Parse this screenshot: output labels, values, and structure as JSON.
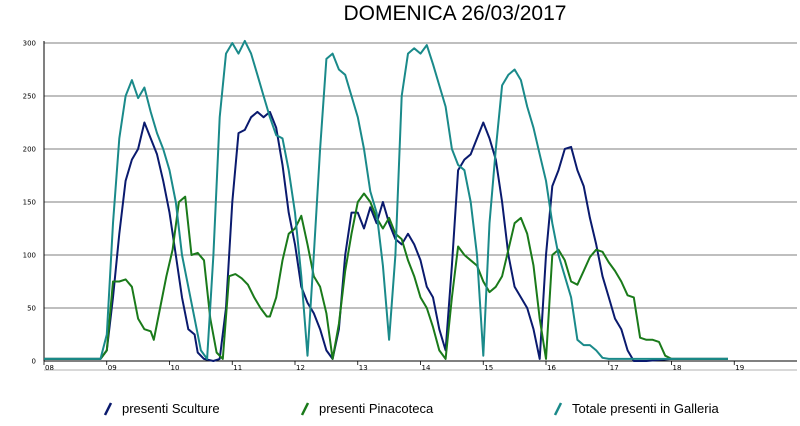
{
  "chart_data": {
    "type": "line",
    "title": "DOMENICA 26/03/2017",
    "xlabel": "",
    "ylabel": "",
    "xlim": [
      8.0,
      20.0
    ],
    "ylim": [
      0,
      300
    ],
    "grid": true,
    "legend_position": "bottom",
    "y_ticks": [
      0,
      50,
      100,
      150,
      200,
      250,
      300
    ],
    "x_ticks": [
      {
        "value": 8,
        "label": "08"
      },
      {
        "value": 9,
        "label": "09"
      },
      {
        "value": 10,
        "label": "10"
      },
      {
        "value": 11,
        "label": "11"
      },
      {
        "value": 12,
        "label": "12"
      },
      {
        "value": 13,
        "label": "13"
      },
      {
        "value": 14,
        "label": "14"
      },
      {
        "value": 15,
        "label": "15"
      },
      {
        "value": 16,
        "label": "16"
      },
      {
        "value": 17,
        "label": "17"
      },
      {
        "value": 18,
        "label": "18"
      },
      {
        "value": 19,
        "label": "19"
      }
    ],
    "series": [
      {
        "name": "presenti Sculture",
        "color": "#0a1a6e",
        "points": [
          [
            8.0,
            2
          ],
          [
            8.9,
            2
          ],
          [
            9.0,
            10
          ],
          [
            9.1,
            60
          ],
          [
            9.2,
            120
          ],
          [
            9.3,
            170
          ],
          [
            9.4,
            190
          ],
          [
            9.5,
            200
          ],
          [
            9.6,
            225
          ],
          [
            9.7,
            210
          ],
          [
            9.8,
            195
          ],
          [
            9.9,
            170
          ],
          [
            10.0,
            140
          ],
          [
            10.1,
            100
          ],
          [
            10.2,
            60
          ],
          [
            10.3,
            30
          ],
          [
            10.4,
            25
          ],
          [
            10.45,
            8
          ],
          [
            10.55,
            2
          ],
          [
            10.7,
            0
          ],
          [
            10.8,
            2
          ],
          [
            10.9,
            50
          ],
          [
            11.0,
            150
          ],
          [
            11.1,
            215
          ],
          [
            11.2,
            218
          ],
          [
            11.3,
            230
          ],
          [
            11.4,
            235
          ],
          [
            11.5,
            230
          ],
          [
            11.6,
            235
          ],
          [
            11.7,
            220
          ],
          [
            11.8,
            185
          ],
          [
            11.9,
            140
          ],
          [
            12.0,
            110
          ],
          [
            12.1,
            70
          ],
          [
            12.2,
            55
          ],
          [
            12.3,
            45
          ],
          [
            12.4,
            30
          ],
          [
            12.5,
            10
          ],
          [
            12.6,
            2
          ],
          [
            12.7,
            30
          ],
          [
            12.8,
            100
          ],
          [
            12.9,
            140
          ],
          [
            13.0,
            140
          ],
          [
            13.1,
            125
          ],
          [
            13.2,
            145
          ],
          [
            13.3,
            130
          ],
          [
            13.4,
            150
          ],
          [
            13.5,
            130
          ],
          [
            13.6,
            115
          ],
          [
            13.7,
            110
          ],
          [
            13.8,
            120
          ],
          [
            13.9,
            110
          ],
          [
            14.0,
            95
          ],
          [
            14.1,
            70
          ],
          [
            14.2,
            60
          ],
          [
            14.3,
            30
          ],
          [
            14.4,
            10
          ],
          [
            14.5,
            90
          ],
          [
            14.6,
            180
          ],
          [
            14.7,
            190
          ],
          [
            14.8,
            195
          ],
          [
            14.9,
            210
          ],
          [
            15.0,
            225
          ],
          [
            15.1,
            210
          ],
          [
            15.2,
            190
          ],
          [
            15.3,
            150
          ],
          [
            15.4,
            100
          ],
          [
            15.5,
            70
          ],
          [
            15.6,
            60
          ],
          [
            15.7,
            50
          ],
          [
            15.8,
            30
          ],
          [
            15.9,
            2
          ],
          [
            16.0,
            100
          ],
          [
            16.1,
            165
          ],
          [
            16.2,
            180
          ],
          [
            16.3,
            200
          ],
          [
            16.4,
            202
          ],
          [
            16.5,
            180
          ],
          [
            16.6,
            165
          ],
          [
            16.7,
            135
          ],
          [
            16.8,
            110
          ],
          [
            16.9,
            80
          ],
          [
            17.0,
            60
          ],
          [
            17.1,
            40
          ],
          [
            17.2,
            30
          ],
          [
            17.3,
            10
          ],
          [
            17.4,
            0
          ],
          [
            17.6,
            0
          ],
          [
            18.0,
            2
          ],
          [
            18.9,
            2
          ]
        ]
      },
      {
        "name": "presenti Pinacoteca",
        "color": "#1a7a1a",
        "points": [
          [
            8.0,
            2
          ],
          [
            8.9,
            2
          ],
          [
            9.0,
            10
          ],
          [
            9.1,
            75
          ],
          [
            9.2,
            75
          ],
          [
            9.3,
            77
          ],
          [
            9.4,
            70
          ],
          [
            9.5,
            40
          ],
          [
            9.6,
            30
          ],
          [
            9.7,
            28
          ],
          [
            9.75,
            20
          ],
          [
            9.85,
            50
          ],
          [
            9.95,
            80
          ],
          [
            10.05,
            105
          ],
          [
            10.15,
            150
          ],
          [
            10.25,
            155
          ],
          [
            10.35,
            100
          ],
          [
            10.45,
            102
          ],
          [
            10.55,
            95
          ],
          [
            10.65,
            40
          ],
          [
            10.75,
            8
          ],
          [
            10.85,
            2
          ],
          [
            10.95,
            80
          ],
          [
            11.05,
            82
          ],
          [
            11.15,
            78
          ],
          [
            11.25,
            72
          ],
          [
            11.35,
            60
          ],
          [
            11.45,
            50
          ],
          [
            11.55,
            42
          ],
          [
            11.6,
            42
          ],
          [
            11.7,
            60
          ],
          [
            11.8,
            95
          ],
          [
            11.9,
            120
          ],
          [
            12.0,
            125
          ],
          [
            12.1,
            137
          ],
          [
            12.2,
            110
          ],
          [
            12.3,
            80
          ],
          [
            12.4,
            70
          ],
          [
            12.5,
            45
          ],
          [
            12.6,
            2
          ],
          [
            12.7,
            35
          ],
          [
            12.8,
            85
          ],
          [
            12.9,
            120
          ],
          [
            13.0,
            150
          ],
          [
            13.1,
            158
          ],
          [
            13.2,
            150
          ],
          [
            13.3,
            135
          ],
          [
            13.4,
            125
          ],
          [
            13.5,
            135
          ],
          [
            13.6,
            120
          ],
          [
            13.7,
            115
          ],
          [
            13.8,
            95
          ],
          [
            13.9,
            80
          ],
          [
            14.0,
            60
          ],
          [
            14.1,
            50
          ],
          [
            14.2,
            32
          ],
          [
            14.3,
            10
          ],
          [
            14.4,
            2
          ],
          [
            14.5,
            60
          ],
          [
            14.6,
            108
          ],
          [
            14.7,
            100
          ],
          [
            14.8,
            95
          ],
          [
            14.9,
            90
          ],
          [
            15.0,
            75
          ],
          [
            15.1,
            65
          ],
          [
            15.2,
            70
          ],
          [
            15.3,
            80
          ],
          [
            15.4,
            105
          ],
          [
            15.5,
            130
          ],
          [
            15.6,
            135
          ],
          [
            15.7,
            120
          ],
          [
            15.8,
            90
          ],
          [
            15.9,
            40
          ],
          [
            16.0,
            2
          ],
          [
            16.1,
            100
          ],
          [
            16.2,
            105
          ],
          [
            16.3,
            95
          ],
          [
            16.4,
            75
          ],
          [
            16.5,
            72
          ],
          [
            16.6,
            85
          ],
          [
            16.7,
            98
          ],
          [
            16.8,
            105
          ],
          [
            16.9,
            103
          ],
          [
            17.0,
            93
          ],
          [
            17.1,
            85
          ],
          [
            17.2,
            75
          ],
          [
            17.3,
            62
          ],
          [
            17.4,
            60
          ],
          [
            17.5,
            22
          ],
          [
            17.6,
            20
          ],
          [
            17.7,
            20
          ],
          [
            17.8,
            18
          ],
          [
            17.9,
            5
          ],
          [
            18.0,
            2
          ],
          [
            18.9,
            2
          ]
        ]
      },
      {
        "name": "Totale presenti in Galleria",
        "color": "#1a8a8a",
        "points": [
          [
            8.0,
            2
          ],
          [
            8.9,
            2
          ],
          [
            9.0,
            25
          ],
          [
            9.1,
            130
          ],
          [
            9.2,
            210
          ],
          [
            9.3,
            250
          ],
          [
            9.4,
            265
          ],
          [
            9.5,
            248
          ],
          [
            9.6,
            258
          ],
          [
            9.7,
            235
          ],
          [
            9.8,
            215
          ],
          [
            9.9,
            200
          ],
          [
            10.0,
            180
          ],
          [
            10.1,
            150
          ],
          [
            10.2,
            100
          ],
          [
            10.3,
            70
          ],
          [
            10.4,
            40
          ],
          [
            10.5,
            10
          ],
          [
            10.6,
            2
          ],
          [
            10.7,
            100
          ],
          [
            10.8,
            230
          ],
          [
            10.9,
            290
          ],
          [
            11.0,
            300
          ],
          [
            11.1,
            290
          ],
          [
            11.2,
            302
          ],
          [
            11.3,
            290
          ],
          [
            11.4,
            270
          ],
          [
            11.5,
            250
          ],
          [
            11.6,
            230
          ],
          [
            11.7,
            213
          ],
          [
            11.8,
            210
          ],
          [
            11.9,
            180
          ],
          [
            12.0,
            140
          ],
          [
            12.1,
            80
          ],
          [
            12.2,
            5
          ],
          [
            12.3,
            100
          ],
          [
            12.4,
            200
          ],
          [
            12.5,
            285
          ],
          [
            12.6,
            290
          ],
          [
            12.7,
            275
          ],
          [
            12.8,
            270
          ],
          [
            12.9,
            250
          ],
          [
            13.0,
            230
          ],
          [
            13.1,
            200
          ],
          [
            13.2,
            160
          ],
          [
            13.3,
            140
          ],
          [
            13.4,
            90
          ],
          [
            13.5,
            20
          ],
          [
            13.6,
            100
          ],
          [
            13.7,
            250
          ],
          [
            13.8,
            290
          ],
          [
            13.9,
            295
          ],
          [
            14.0,
            290
          ],
          [
            14.1,
            298
          ],
          [
            14.2,
            280
          ],
          [
            14.3,
            260
          ],
          [
            14.4,
            240
          ],
          [
            14.5,
            200
          ],
          [
            14.6,
            185
          ],
          [
            14.7,
            180
          ],
          [
            14.8,
            150
          ],
          [
            14.9,
            100
          ],
          [
            15.0,
            5
          ],
          [
            15.1,
            130
          ],
          [
            15.2,
            200
          ],
          [
            15.3,
            260
          ],
          [
            15.4,
            270
          ],
          [
            15.5,
            275
          ],
          [
            15.6,
            265
          ],
          [
            15.7,
            240
          ],
          [
            15.8,
            220
          ],
          [
            15.9,
            195
          ],
          [
            16.0,
            170
          ],
          [
            16.1,
            130
          ],
          [
            16.2,
            100
          ],
          [
            16.3,
            80
          ],
          [
            16.4,
            60
          ],
          [
            16.5,
            20
          ],
          [
            16.6,
            15
          ],
          [
            16.7,
            15
          ],
          [
            16.8,
            10
          ],
          [
            16.9,
            3
          ],
          [
            17.0,
            2
          ],
          [
            17.2,
            2
          ],
          [
            18.9,
            2
          ]
        ]
      }
    ]
  }
}
